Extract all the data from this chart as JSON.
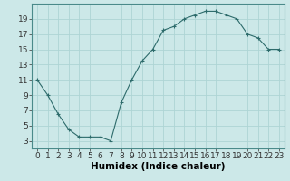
{
  "x": [
    0,
    1,
    2,
    3,
    4,
    5,
    6,
    7,
    8,
    9,
    10,
    11,
    12,
    13,
    14,
    15,
    16,
    17,
    18,
    19,
    20,
    21,
    22,
    23
  ],
  "y": [
    11,
    9,
    6.5,
    4.5,
    3.5,
    3.5,
    3.5,
    3,
    8,
    11,
    13.5,
    15,
    17.5,
    18,
    19,
    19.5,
    20,
    20,
    19.5,
    19,
    17,
    16.5,
    15,
    15
  ],
  "line_color": "#2d6b6b",
  "marker": "+",
  "marker_size": 3,
  "marker_linewidth": 0.8,
  "line_width": 0.8,
  "bg_color": "#cce8e8",
  "grid_color": "#aed4d4",
  "xlabel": "Humidex (Indice chaleur)",
  "xlim": [
    -0.5,
    23.5
  ],
  "ylim": [
    2,
    21
  ],
  "yticks": [
    3,
    5,
    7,
    9,
    11,
    13,
    15,
    17,
    19
  ],
  "xticks": [
    0,
    1,
    2,
    3,
    4,
    5,
    6,
    7,
    8,
    9,
    10,
    11,
    12,
    13,
    14,
    15,
    16,
    17,
    18,
    19,
    20,
    21,
    22,
    23
  ],
  "xtick_labels": [
    "0",
    "1",
    "2",
    "3",
    "4",
    "5",
    "6",
    "7",
    "8",
    "9",
    "10",
    "11",
    "12",
    "13",
    "14",
    "15",
    "16",
    "17",
    "18",
    "19",
    "20",
    "21",
    "22",
    "23"
  ],
  "xlabel_fontsize": 7.5,
  "tick_fontsize": 6.5
}
